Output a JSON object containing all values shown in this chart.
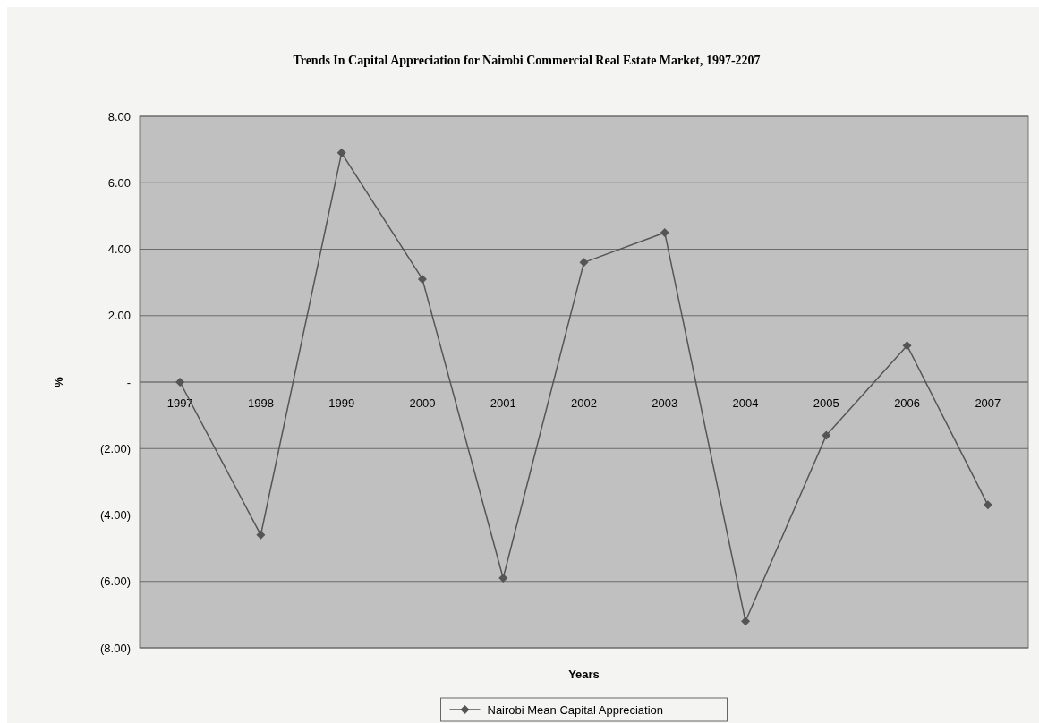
{
  "chart_data": {
    "type": "line",
    "title": "Trends In Capital Appreciation for Nairobi Commercial Real Estate Market, 1997-2207",
    "xlabel": "Years",
    "ylabel": "%",
    "categories": [
      "1997",
      "1998",
      "1999",
      "2000",
      "2001",
      "2002",
      "2003",
      "2004",
      "2005",
      "2006",
      "2007"
    ],
    "series": [
      {
        "name": "Nairobi Mean Capital Appreciation",
        "color": "#555555",
        "values": [
          0,
          -4.6,
          6.9,
          3.1,
          -5.9,
          3.6,
          4.5,
          -7.2,
          -1.6,
          1.1,
          -3.7
        ]
      }
    ],
    "ylim": [
      -8,
      8
    ],
    "yticks": [
      {
        "value": 8,
        "label": "8.00"
      },
      {
        "value": 6,
        "label": "6.00"
      },
      {
        "value": 4,
        "label": "4.00"
      },
      {
        "value": 2,
        "label": "2.00"
      },
      {
        "value": 0,
        "label": "-"
      },
      {
        "value": -2,
        "label": "(2.00)"
      },
      {
        "value": -4,
        "label": "(4.00)"
      },
      {
        "value": -6,
        "label": "(6.00)"
      },
      {
        "value": -8,
        "label": "(8.00)"
      }
    ],
    "grid": "y",
    "legend": "bottom",
    "marker": "diamond",
    "line_style": "solid"
  }
}
